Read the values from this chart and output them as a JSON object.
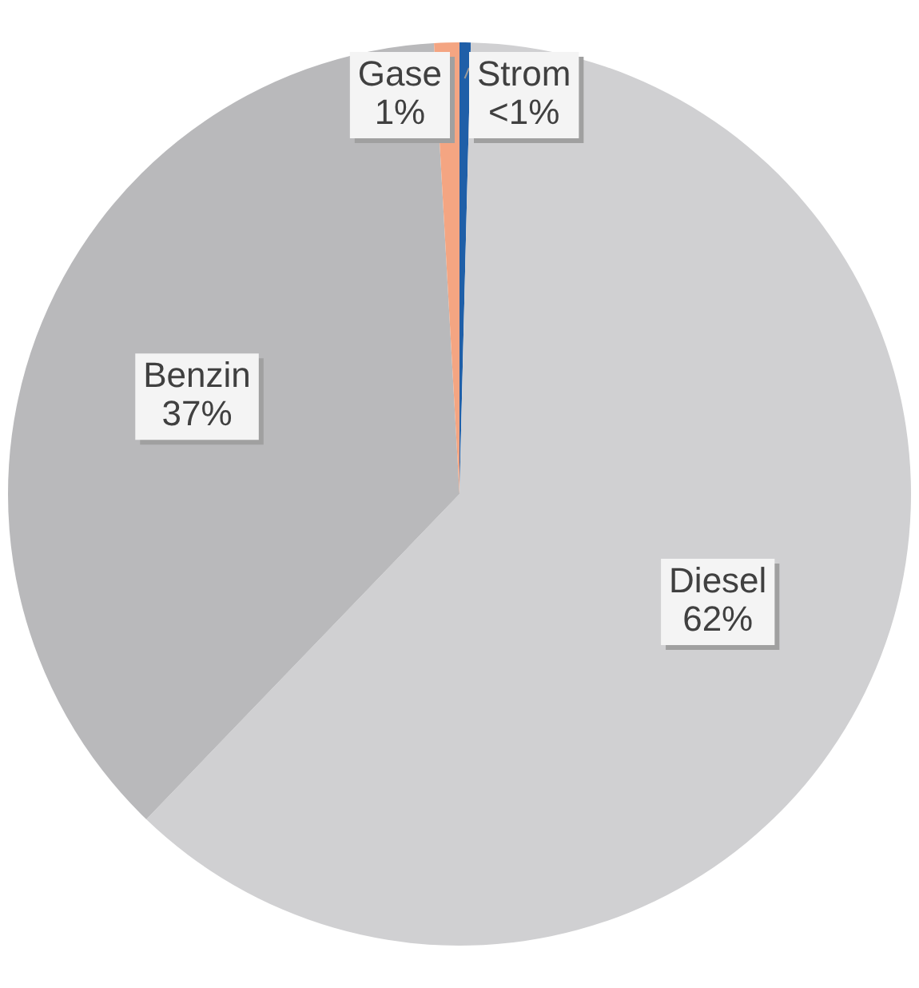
{
  "chart_data": {
    "type": "pie",
    "categories": [
      "Strom",
      "Diesel",
      "Benzin",
      "Gase"
    ],
    "values": [
      0.4,
      61.8,
      36.9,
      0.9
    ],
    "colors": [
      "#1f5fa8",
      "#d0d0d2",
      "#b9b9bb",
      "#f4a582"
    ],
    "value_labels": [
      "<1%",
      "62%",
      "37%",
      "1%"
    ],
    "legend": false
  }
}
